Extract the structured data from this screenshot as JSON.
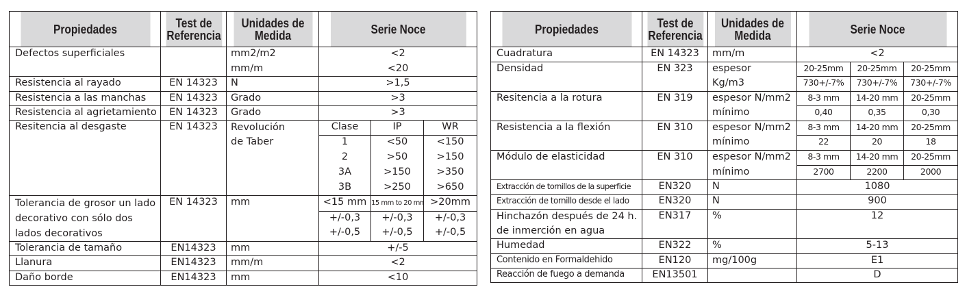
{
  "headers": {
    "propiedades": "Propiedades",
    "test_ref_1": "Test de",
    "test_ref_2": "Referencia",
    "unidades_1": "Unidades de",
    "unidades_2": "Medida",
    "serie": "Serie Noce"
  },
  "left": {
    "defectos": {
      "prop": "Defectos superficiales",
      "u1": "mm2/m2",
      "u2": "mm/m",
      "v1": "<2",
      "v2": "<20"
    },
    "rayado": {
      "prop": "Resistencia al rayado",
      "ref": "EN 14323",
      "unit": "N",
      "val": ">1,5"
    },
    "manchas": {
      "prop": "Resistencia a las manchas",
      "ref": "EN 14323",
      "unit": "Grado",
      "val": ">3"
    },
    "agrietamiento": {
      "prop": "Resistencia al agrietamiento",
      "ref": "EN 14323",
      "unit": "Grado",
      "val": ">3"
    },
    "desgaste": {
      "prop": "Resitencia al desgaste",
      "ref": "EN 14323",
      "unit1": "Revolución",
      "unit2": "de Taber",
      "cols": [
        "Clase",
        "IP",
        "WR"
      ],
      "rows": [
        [
          "1",
          "<50",
          "<150"
        ],
        [
          "2",
          ">50",
          ">150"
        ],
        [
          "3A",
          ">150",
          ">350"
        ],
        [
          "3B",
          ">250",
          ">650"
        ]
      ]
    },
    "grosor": {
      "prop1": "Tolerancia de grosor un lado",
      "prop2": "decorativo con sólo dos",
      "prop3": "lados decorativos",
      "ref": "EN 14323",
      "unit": "mm",
      "cols": [
        "<15 mm",
        "15 mm to 20 mm",
        ">20mm"
      ],
      "row1": [
        "+/-0,3",
        "+/-0,3",
        "+/-0,3"
      ],
      "row2": [
        "+/-0,5",
        "+/-0,5",
        "+/-0,5"
      ]
    },
    "tamano": {
      "prop": "Tolerancia de tamaño",
      "ref": "EN14323",
      "unit": "mm",
      "val": "+/-5"
    },
    "llanura": {
      "prop": "Llanura",
      "ref": "EN14323",
      "unit": "mm/m",
      "val": "<2"
    },
    "borde": {
      "prop": "Daño borde",
      "ref": "EN14323",
      "unit": "mm",
      "val": "<10"
    }
  },
  "right": {
    "cuadratura": {
      "prop": "Cuadratura",
      "ref": "EN 14323",
      "unit": "mm/m",
      "val": "<2"
    },
    "densidad": {
      "prop": "Densidad",
      "ref": "EN 323",
      "unit1": "espesor",
      "unit2": "Kg/m3",
      "cols": [
        "20-25mm",
        "20-25mm",
        "20-25mm"
      ],
      "vals": [
        "730+/-7%",
        "730+/-7%",
        "730+/-7%"
      ]
    },
    "rotura": {
      "prop": "Resitencia a la rotura",
      "ref": "EN 319",
      "unit1": "espesor N/mm2",
      "unit2": "mínimo",
      "cols": [
        "8-3 mm",
        "14-20 mm",
        "20-25mm"
      ],
      "vals": [
        "0,40",
        "0,35",
        "0,30"
      ]
    },
    "flexion": {
      "prop": "Resistencia a la flexión",
      "ref": "EN 310",
      "unit1": "espesor N/mm2",
      "unit2": "mínimo",
      "cols": [
        "8-3 mm",
        "14-20 mm",
        "20-25mm"
      ],
      "vals": [
        "22",
        "20",
        "18"
      ]
    },
    "elasticidad": {
      "prop": "Módulo de elasticidad",
      "ref": "EN 310",
      "unit1": "espesor N/mm2",
      "unit2": "mínimo",
      "cols": [
        "8-3 mm",
        "14-20 mm",
        "20-25mm"
      ],
      "vals": [
        "2700",
        "2200",
        "2000"
      ]
    },
    "tornillos_sup": {
      "prop": "Extracción de tornillos de la superficie",
      "ref": "EN320",
      "unit": "N",
      "val": "1080"
    },
    "tornillo_lado": {
      "prop": "Extracción de tornillo desde el lado",
      "ref": "EN320",
      "unit": "N",
      "val": "900"
    },
    "hinchazon": {
      "prop1": "Hinchazón después de 24 h.",
      "prop2": "de inmerción en agua",
      "ref": "EN317",
      "unit": "%",
      "val": "12"
    },
    "humedad": {
      "prop": "Humedad",
      "ref": "EN322",
      "unit": "%",
      "val": "5-13"
    },
    "formaldehido": {
      "prop": "Contenido en Formaldehido",
      "ref": "EN120",
      "unit": "mg/100g",
      "val": "E1"
    },
    "fuego": {
      "prop": "Reacción de fuego a demanda",
      "ref": "EN13501",
      "unit": "",
      "val": "D"
    }
  }
}
